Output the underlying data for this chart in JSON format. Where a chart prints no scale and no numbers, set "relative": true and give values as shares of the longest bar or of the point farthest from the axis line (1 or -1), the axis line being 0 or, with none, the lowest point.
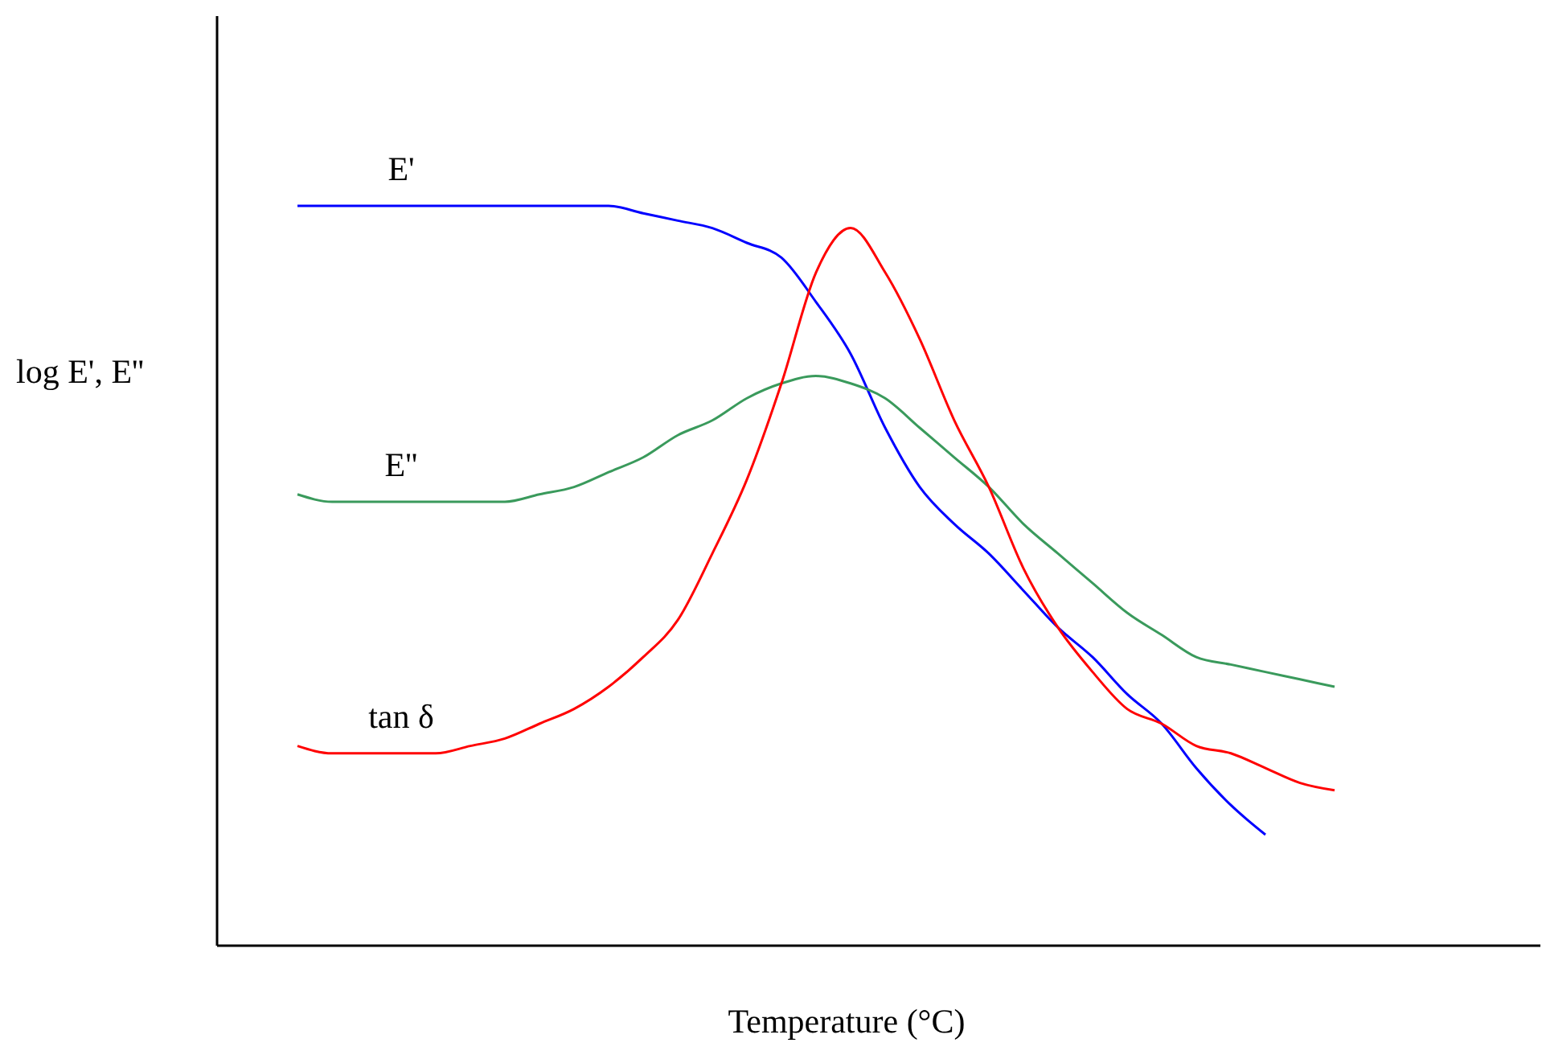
{
  "chart_data": {
    "type": "line",
    "relative": true,
    "xlabel": "Temperature (°C)",
    "ylabel": "log E', E''",
    "categories": [
      null,
      null,
      null,
      null,
      null,
      null,
      null,
      null,
      null,
      null,
      null,
      null,
      null,
      null,
      null,
      null,
      null,
      null,
      null,
      null,
      null,
      null,
      null,
      null,
      null,
      null,
      null,
      null,
      null,
      null,
      null
    ],
    "series": [
      {
        "name": "E'",
        "color": "#0000ff",
        "values": [
          1.0,
          1.0,
          1.0,
          1.0,
          1.0,
          1.0,
          1.0,
          1.0,
          1.0,
          1.0,
          0.99,
          0.98,
          0.97,
          0.95,
          0.93,
          0.87,
          0.8,
          0.7,
          0.62,
          0.57,
          0.53,
          0.48,
          0.43,
          0.39,
          0.34,
          0.3,
          0.24,
          0.19,
          0.15,
          null,
          null
        ]
      },
      {
        "name": "E''",
        "color": "#3a9a5c",
        "values": [
          0.61,
          0.6,
          0.6,
          0.6,
          0.6,
          0.6,
          0.6,
          0.61,
          0.62,
          0.64,
          0.66,
          0.69,
          0.71,
          0.74,
          0.76,
          0.77,
          0.76,
          0.74,
          0.7,
          0.66,
          0.62,
          0.57,
          0.53,
          0.49,
          0.45,
          0.42,
          0.39,
          0.38,
          0.37,
          0.36,
          0.35
        ]
      },
      {
        "name": "tan δ",
        "color": "#ff0000",
        "values": [
          0.27,
          0.26,
          0.26,
          0.26,
          0.26,
          0.27,
          0.28,
          0.3,
          0.32,
          0.35,
          0.39,
          0.44,
          0.53,
          0.63,
          0.76,
          0.91,
          0.97,
          0.91,
          0.82,
          0.71,
          0.62,
          0.51,
          0.43,
          0.37,
          0.32,
          0.3,
          0.27,
          0.26,
          0.24,
          0.22,
          0.21
        ]
      }
    ]
  }
}
